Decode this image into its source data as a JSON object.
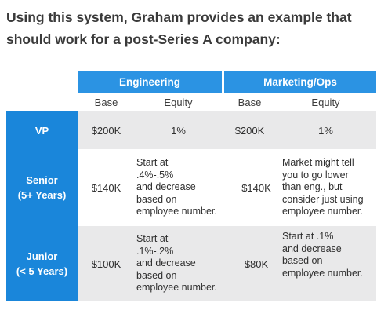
{
  "intro": "Using this system, Graham provides an example that should work for a post-Series A company:",
  "groups": [
    "Engineering",
    "Marketing/Ops"
  ],
  "subheaders": [
    "Base",
    "Equity",
    "Base",
    "Equity"
  ],
  "rows": [
    {
      "label": "VP",
      "eng_base": "$200K",
      "eng_equity": "1%",
      "mkt_base": "$200K",
      "mkt_equity": "1%"
    },
    {
      "label": "Senior\n(5+ Years)",
      "eng_base": "$140K",
      "eng_equity": "Start at\n.4%-.5%\nand decrease\nbased on\nemployee number.",
      "mkt_base": "$140K",
      "mkt_equity": "Market might tell\nyou to go lower\nthan eng., but\nconsider just using\nemployee number."
    },
    {
      "label": "Junior\n(< 5 Years)",
      "eng_base": "$100K",
      "eng_equity": "Start at\n.1%-.2%\nand decrease\nbased on\nemployee number.",
      "mkt_base": "$80K",
      "mkt_equity": "Start at .1%\nand decrease\nbased on\nemployee number."
    }
  ]
}
